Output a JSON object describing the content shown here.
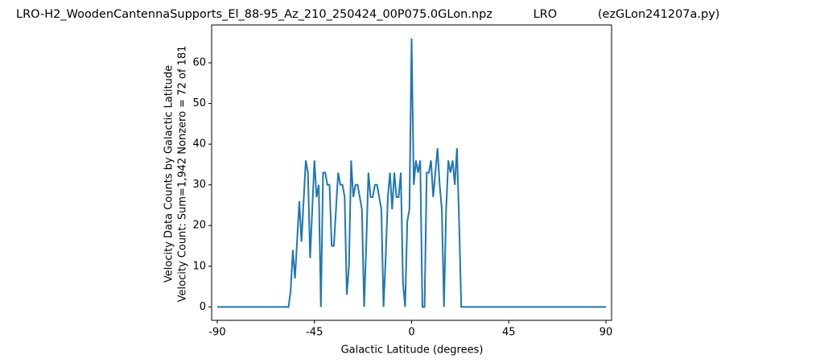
{
  "chart_data": {
    "type": "line",
    "title": "LRO-H2_WoodenCantennaSupports_El_88-95_Az_210_250424_00P075.0GLon.npz           LRO           (ezGLon241207a.py)",
    "y_label": [
      "Velocity Data Counts by Galactic Latitude",
      "Velocity Count: Sum=1,942 Nonzero = 72 of 181"
    ],
    "x_label": "Galactic Latitude (degrees)",
    "xlim": [
      -92.6,
      92.6
    ],
    "ylim": [
      -3.3,
      69.3
    ],
    "xticks": [
      -90,
      -45,
      0,
      45,
      90
    ],
    "yticks": [
      0,
      10,
      20,
      30,
      40,
      50,
      60
    ],
    "grid": false,
    "series": [
      {
        "color": "#1f77b4",
        "x": [
          -90,
          -57,
          -56,
          -55,
          -54,
          -52,
          -51,
          -49,
          -48,
          -47,
          -45,
          -44,
          -43,
          -42,
          -41,
          -40,
          -39,
          -38,
          -37,
          -36,
          -34,
          -33,
          -32,
          -31,
          -30,
          -29,
          -28,
          -27,
          -26,
          -25,
          -24,
          -23,
          -22,
          -21,
          -20,
          -19,
          -18,
          -17,
          -16,
          -15,
          -14,
          -13,
          -12,
          -11,
          -10,
          -9,
          -8,
          -7,
          -6,
          -5,
          -4,
          -3,
          -2,
          -1,
          0,
          1,
          2,
          3,
          4,
          5,
          6,
          7,
          8,
          9,
          10,
          11,
          12,
          13,
          14,
          15,
          16,
          17,
          18,
          19,
          20,
          21,
          22,
          23,
          90
        ],
        "values": [
          0,
          0,
          4,
          14,
          7,
          26,
          16,
          36,
          33,
          12,
          36,
          27,
          30,
          0,
          33,
          33,
          30,
          30,
          15,
          15,
          33,
          30,
          30,
          27,
          3,
          10,
          36,
          27,
          30,
          30,
          27,
          24,
          0,
          15,
          33,
          27,
          27,
          30,
          30,
          27,
          24,
          0,
          12,
          27,
          33,
          24,
          33,
          27,
          27,
          33,
          6,
          0,
          21,
          24,
          66,
          30,
          36,
          33,
          36,
          0,
          0,
          33,
          33,
          36,
          27,
          33,
          39,
          30,
          24,
          0,
          24,
          36,
          33,
          36,
          30,
          39,
          21,
          0,
          0
        ]
      }
    ]
  }
}
